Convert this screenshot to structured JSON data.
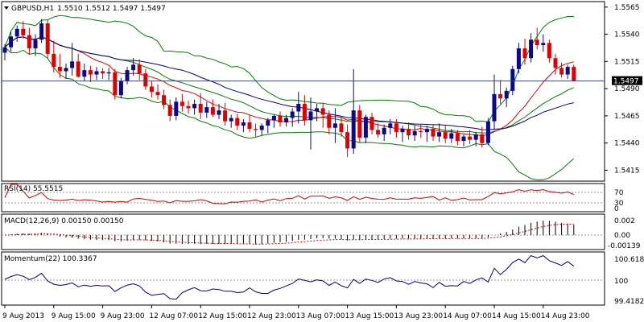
{
  "chart_data": [
    {
      "type": "candlestick",
      "symbol": "GBPUSD,H1",
      "ohlc_header": "1.5510 1.5512 1.5497 1.5497",
      "ylim": [
        1.5405,
        1.557
      ],
      "y_ticks": [
        "1.5565",
        "1.5540",
        "1.5515",
        "1.5490",
        "1.5465",
        "1.5440",
        "1.5415"
      ],
      "current_price": "1.5497",
      "current_price_value": 1.5497,
      "colors": {
        "bull": "#0a0a8a",
        "bear": "#e00000",
        "bb": "#008000",
        "ma_fast": "#e00000",
        "ma_slow": "#00007a",
        "price_line": "#384870"
      },
      "candles": [
        [
          1.5523,
          1.5531,
          1.5516,
          1.5528
        ],
        [
          1.5528,
          1.5542,
          1.5524,
          1.5538
        ],
        [
          1.5538,
          1.5548,
          1.5533,
          1.5545
        ],
        [
          1.5545,
          1.5552,
          1.5536,
          1.5539
        ],
        [
          1.5539,
          1.5546,
          1.5521,
          1.5527
        ],
        [
          1.5527,
          1.554,
          1.552,
          1.5535
        ],
        [
          1.5535,
          1.5554,
          1.5532,
          1.555
        ],
        [
          1.555,
          1.5553,
          1.5518,
          1.5522
        ],
        [
          1.5522,
          1.5534,
          1.5505,
          1.551
        ],
        [
          1.551,
          1.5522,
          1.55,
          1.5506
        ],
        [
          1.5506,
          1.5513,
          1.5499,
          1.5509
        ],
        [
          1.5509,
          1.5532,
          1.5502,
          1.5515
        ],
        [
          1.5515,
          1.5522,
          1.55,
          1.5501
        ],
        [
          1.5501,
          1.5513,
          1.5497,
          1.5507
        ],
        [
          1.5507,
          1.5511,
          1.5496,
          1.5503
        ],
        [
          1.5503,
          1.551,
          1.5498,
          1.5506
        ],
        [
          1.5506,
          1.5509,
          1.5499,
          1.5504
        ],
        [
          1.5504,
          1.5509,
          1.5498,
          1.5505
        ],
        [
          1.5505,
          1.5508,
          1.548,
          1.5484
        ],
        [
          1.5484,
          1.55,
          1.5481,
          1.5497
        ],
        [
          1.5497,
          1.551,
          1.5494,
          1.5507
        ],
        [
          1.5507,
          1.5518,
          1.5502,
          1.5512
        ],
        [
          1.5512,
          1.5517,
          1.5498,
          1.5504
        ],
        [
          1.5504,
          1.5508,
          1.5489,
          1.5492
        ],
        [
          1.5492,
          1.5497,
          1.5482,
          1.5487
        ],
        [
          1.5487,
          1.5494,
          1.548,
          1.5484
        ],
        [
          1.5484,
          1.5489,
          1.5471,
          1.5475
        ],
        [
          1.5475,
          1.548,
          1.546,
          1.5465
        ],
        [
          1.5465,
          1.5482,
          1.5461,
          1.5478
        ],
        [
          1.5478,
          1.5485,
          1.5469,
          1.5474
        ],
        [
          1.5474,
          1.5479,
          1.5467,
          1.5472
        ],
        [
          1.5472,
          1.548,
          1.5466,
          1.5476
        ],
        [
          1.5476,
          1.5486,
          1.5462,
          1.5468
        ],
        [
          1.5468,
          1.5478,
          1.5463,
          1.5473
        ],
        [
          1.5473,
          1.548,
          1.5464,
          1.5466
        ],
        [
          1.5466,
          1.5476,
          1.5462,
          1.547
        ],
        [
          1.547,
          1.5477,
          1.5456,
          1.546
        ],
        [
          1.546,
          1.5466,
          1.5454,
          1.5463
        ],
        [
          1.5463,
          1.5467,
          1.5452,
          1.5456
        ],
        [
          1.5456,
          1.5462,
          1.545,
          1.5459
        ],
        [
          1.5459,
          1.5466,
          1.545,
          1.5453
        ],
        [
          1.5453,
          1.5458,
          1.5446,
          1.5452
        ],
        [
          1.5452,
          1.5458,
          1.5447,
          1.5456
        ],
        [
          1.5456,
          1.5463,
          1.5449,
          1.5461
        ],
        [
          1.5461,
          1.5466,
          1.5454,
          1.5465
        ],
        [
          1.5465,
          1.5469,
          1.5455,
          1.5459
        ],
        [
          1.5459,
          1.5466,
          1.5455,
          1.5463
        ],
        [
          1.5463,
          1.5472,
          1.5455,
          1.5469
        ],
        [
          1.5469,
          1.5487,
          1.5458,
          1.5476
        ],
        [
          1.5476,
          1.5484,
          1.5456,
          1.5461
        ],
        [
          1.5461,
          1.5482,
          1.5434,
          1.5469
        ],
        [
          1.5469,
          1.5476,
          1.546,
          1.5472
        ],
        [
          1.5472,
          1.5477,
          1.5454,
          1.5466
        ],
        [
          1.5466,
          1.547,
          1.5448,
          1.5454
        ],
        [
          1.5454,
          1.5472,
          1.544,
          1.5458
        ],
        [
          1.5458,
          1.5464,
          1.5446,
          1.545
        ],
        [
          1.545,
          1.5457,
          1.5427,
          1.5435
        ],
        [
          1.5435,
          1.5508,
          1.543,
          1.547
        ],
        [
          1.547,
          1.5475,
          1.544,
          1.5445
        ],
        [
          1.5445,
          1.5466,
          1.544,
          1.5464
        ],
        [
          1.5464,
          1.5468,
          1.5448,
          1.5452
        ],
        [
          1.5452,
          1.5458,
          1.5445,
          1.5448
        ],
        [
          1.5448,
          1.5457,
          1.5442,
          1.5454
        ],
        [
          1.5454,
          1.5462,
          1.5448,
          1.5458
        ],
        [
          1.5458,
          1.5462,
          1.5445,
          1.545
        ],
        [
          1.545,
          1.5456,
          1.5441,
          1.5453
        ],
        [
          1.5453,
          1.5459,
          1.5443,
          1.5447
        ],
        [
          1.5447,
          1.5456,
          1.5442,
          1.5451
        ],
        [
          1.5451,
          1.5457,
          1.5445,
          1.545
        ],
        [
          1.545,
          1.5456,
          1.5441,
          1.5453
        ],
        [
          1.5453,
          1.5457,
          1.5442,
          1.5446
        ],
        [
          1.5446,
          1.5458,
          1.5441,
          1.545
        ],
        [
          1.545,
          1.5456,
          1.544,
          1.5444
        ],
        [
          1.5444,
          1.5453,
          1.544,
          1.5449
        ],
        [
          1.5449,
          1.5452,
          1.5438,
          1.5442
        ],
        [
          1.5442,
          1.5448,
          1.5437,
          1.5446
        ],
        [
          1.5446,
          1.5452,
          1.5439,
          1.5443
        ],
        [
          1.5443,
          1.545,
          1.5437,
          1.5448
        ],
        [
          1.5448,
          1.5455,
          1.5436,
          1.544
        ],
        [
          1.544,
          1.5463,
          1.5438,
          1.546
        ],
        [
          1.546,
          1.5503,
          1.5452,
          1.5485
        ],
        [
          1.5485,
          1.5498,
          1.5476,
          1.5481
        ],
        [
          1.5481,
          1.5491,
          1.5473,
          1.5488
        ],
        [
          1.5488,
          1.5511,
          1.5484,
          1.5508
        ],
        [
          1.5508,
          1.5532,
          1.5504,
          1.5527
        ],
        [
          1.5527,
          1.5536,
          1.5512,
          1.5518
        ],
        [
          1.5518,
          1.5541,
          1.5514,
          1.5535
        ],
        [
          1.5535,
          1.5546,
          1.5526,
          1.553
        ],
        [
          1.553,
          1.554,
          1.5524,
          1.5532
        ],
        [
          1.5532,
          1.5535,
          1.5514,
          1.5518
        ],
        [
          1.5518,
          1.5522,
          1.5503,
          1.5509
        ],
        [
          1.5509,
          1.5514,
          1.55,
          1.5503
        ],
        [
          1.5503,
          1.5512,
          1.5499,
          1.551
        ],
        [
          1.551,
          1.5512,
          1.5497,
          1.5497
        ]
      ],
      "x_ticks": [
        {
          "label": "9 Aug 2013",
          "i": 0
        },
        {
          "label": "9 Aug 15:00",
          "i": 8
        },
        {
          "label": "9 Aug 23:00",
          "i": 16
        },
        {
          "label": "12 Aug 07:00",
          "i": 24
        },
        {
          "label": "12 Aug 15:00",
          "i": 32
        },
        {
          "label": "12 Aug 23:00",
          "i": 40
        },
        {
          "label": "13 Aug 07:00",
          "i": 48
        },
        {
          "label": "13 Aug 15:00",
          "i": 56
        },
        {
          "label": "13 Aug 23:00",
          "i": 64
        },
        {
          "label": "14 Aug 07:00",
          "i": 72
        },
        {
          "label": "14 Aug 15:00",
          "i": 80
        },
        {
          "label": "14 Aug 23:00",
          "i": 88
        }
      ]
    },
    {
      "type": "line",
      "name": "RSI(14)",
      "label": "RSI(14) 55.5515",
      "ylim": [
        0,
        100
      ],
      "y_ticks": [
        "70",
        "30",
        "0"
      ],
      "levels": [
        70,
        30
      ]
    },
    {
      "type": "bar",
      "name": "MACD(12,26,9)",
      "label": "MACD(12,26,9) 0.00150 0.00150",
      "ylim": [
        -0.00139,
        0.002
      ],
      "y_ticks": [
        "0.002",
        "0.00",
        "-0.00139"
      ]
    },
    {
      "type": "line",
      "name": "Momentum(22)",
      "label": "Momentum(22) 100.3367",
      "ylim": [
        99.4182,
        100.618
      ],
      "y_ticks": [
        "100.618",
        "100",
        "99.4182"
      ]
    }
  ]
}
